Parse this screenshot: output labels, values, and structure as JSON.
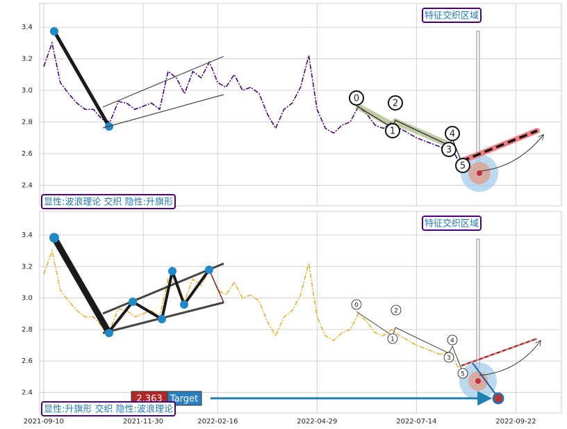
{
  "chart_data": [
    {
      "type": "line",
      "series": [
        {
          "name": "price",
          "color": "#4b0082",
          "values": [
            3.15,
            3.3,
            3.05,
            2.98,
            2.92,
            2.88,
            2.88,
            2.82,
            2.8,
            2.93,
            2.92,
            2.88,
            2.9,
            2.92,
            2.88,
            3.12,
            3.08,
            2.98,
            3.12,
            3.08,
            3.18,
            3.05,
            3.02,
            3.1,
            3.0,
            3.02,
            2.98,
            2.85,
            2.76,
            2.88,
            2.92,
            3.02,
            3.22,
            2.88,
            2.76,
            2.73,
            2.78,
            2.8,
            2.9,
            2.85,
            2.78,
            2.76,
            2.8,
            2.76,
            2.73,
            2.7,
            2.68,
            2.66,
            2.64,
            2.66,
            2.56,
            2.58,
            2.6,
            null,
            null,
            null,
            null,
            null,
            null,
            null,
            null,
            null,
            null
          ]
        }
      ],
      "ylim": [
        2.27,
        3.55
      ],
      "yticks": [
        2.4,
        2.6,
        2.8,
        {
          "value": 3,
          "label": "3.0"
        },
        3.2,
        3.4
      ],
      "grid": true,
      "region_label": "特征交织区域",
      "pattern_label": "显性:波浪理论 交织 隐性:升旗形",
      "wave_labels": [
        "0",
        "1",
        "2",
        "3",
        "4",
        "5"
      ]
    },
    {
      "type": "line",
      "categories": [
        "2021-09-10",
        null,
        null,
        null,
        null,
        null,
        null,
        null,
        null,
        null,
        null,
        null,
        "2021-11-30",
        null,
        null,
        null,
        null,
        null,
        null,
        null,
        null,
        "2022-02-16",
        null,
        null,
        null,
        null,
        null,
        null,
        null,
        null,
        null,
        null,
        null,
        "2022-04-29",
        null,
        null,
        null,
        null,
        null,
        null,
        null,
        null,
        null,
        null,
        null,
        "2022-07-14",
        null,
        null,
        null,
        null,
        null,
        null,
        null,
        null,
        null,
        null,
        null,
        "2022-09-22",
        null,
        null,
        null,
        null,
        null
      ],
      "series": [
        {
          "name": "price",
          "color": "#e8b030",
          "values": [
            3.15,
            3.3,
            3.05,
            2.98,
            2.92,
            2.88,
            2.88,
            2.82,
            2.8,
            2.93,
            2.92,
            2.88,
            2.9,
            2.92,
            2.88,
            3.12,
            3.08,
            2.98,
            3.12,
            3.08,
            3.18,
            3.05,
            3.02,
            3.1,
            3.0,
            3.02,
            2.98,
            2.85,
            2.76,
            2.88,
            2.92,
            3.02,
            3.22,
            2.88,
            2.76,
            2.73,
            2.78,
            2.8,
            2.9,
            2.85,
            2.78,
            2.76,
            2.8,
            2.76,
            2.73,
            2.7,
            2.68,
            2.66,
            2.64,
            2.66,
            2.56,
            2.58,
            2.6,
            null,
            null,
            null,
            null,
            null,
            null,
            null,
            null,
            null,
            null
          ]
        }
      ],
      "ylim": [
        2.27,
        3.55
      ],
      "yticks": [
        2.4,
        2.6,
        2.8,
        {
          "value": 3,
          "label": "3.0"
        },
        3.2,
        3.4
      ],
      "grid": true,
      "region_label": "特征交织区域",
      "pattern_label": "显性:升旗形 交织 隐性:波浪理论",
      "wave_labels": [
        "0",
        "1",
        "2",
        "3",
        "4",
        "5"
      ],
      "target": {
        "value": 2.363,
        "label": "Target"
      }
    }
  ]
}
